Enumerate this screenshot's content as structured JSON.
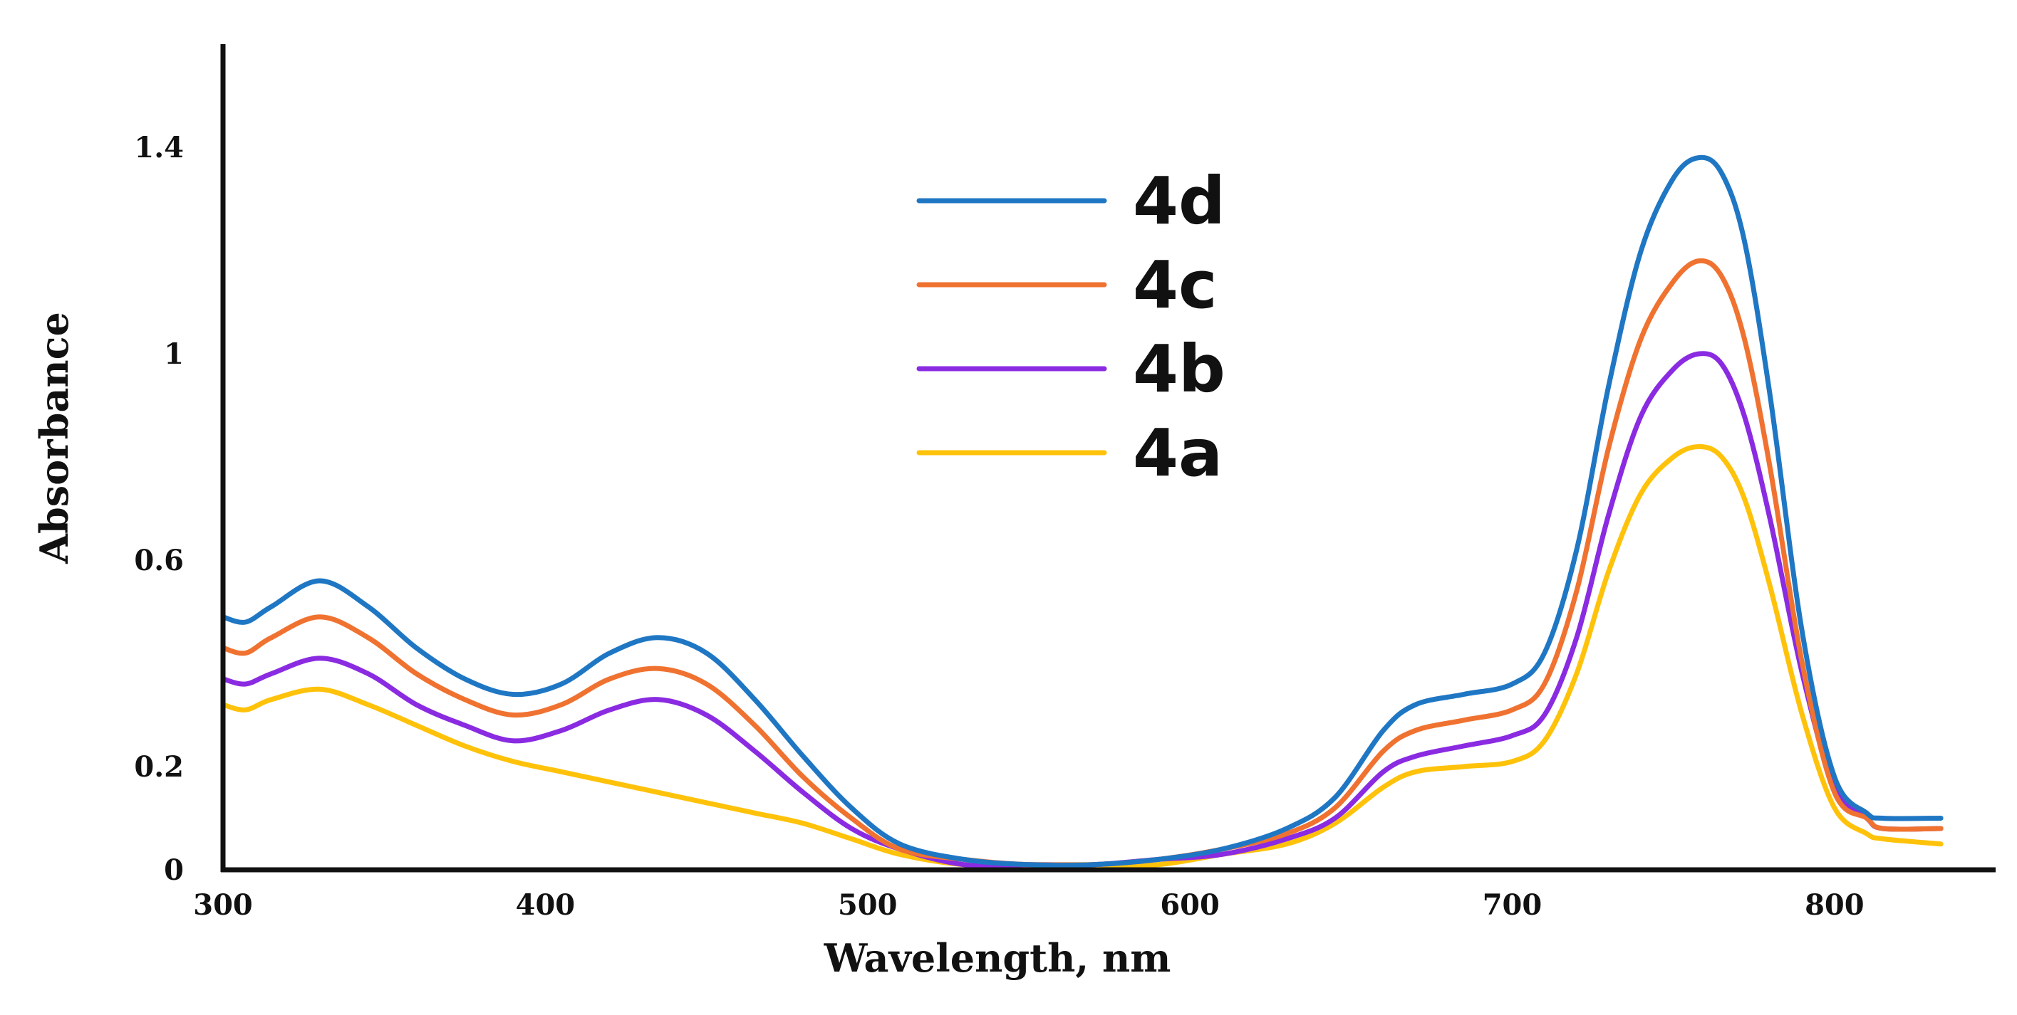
{
  "chart_data": {
    "type": "line",
    "title": "",
    "xlabel": "Wavelength, nm",
    "ylabel": "Absorbance",
    "xlim": [
      300,
      850
    ],
    "ylim": [
      0,
      1.6
    ],
    "xticks": [
      300,
      400,
      500,
      600,
      700,
      800
    ],
    "yticks": [
      {
        "value": 0,
        "label": "0"
      },
      {
        "value": 0.2,
        "label": "0.2"
      },
      {
        "value": 0.6,
        "label": "0.6"
      },
      {
        "value": 1.0,
        "label": "1"
      },
      {
        "value": 1.4,
        "label": "1.4"
      }
    ],
    "grid": false,
    "legend_position": "top-center",
    "series": [
      {
        "name": "4d",
        "color": "#1f77c4",
        "x": [
          300,
          307,
          315,
          330,
          345,
          360,
          375,
          390,
          405,
          420,
          435,
          450,
          465,
          480,
          495,
          510,
          530,
          550,
          570,
          590,
          610,
          630,
          645,
          660,
          670,
          685,
          700,
          710,
          720,
          730,
          740,
          750,
          758,
          765,
          772,
          780,
          790,
          800,
          810,
          815,
          833
        ],
        "y": [
          0.49,
          0.48,
          0.51,
          0.56,
          0.51,
          0.43,
          0.37,
          0.34,
          0.36,
          0.42,
          0.45,
          0.42,
          0.33,
          0.22,
          0.12,
          0.05,
          0.02,
          0.01,
          0.01,
          0.02,
          0.04,
          0.08,
          0.14,
          0.27,
          0.32,
          0.34,
          0.36,
          0.42,
          0.62,
          0.94,
          1.2,
          1.34,
          1.38,
          1.35,
          1.22,
          0.92,
          0.46,
          0.18,
          0.11,
          0.1,
          0.1
        ]
      },
      {
        "name": "4c",
        "color": "#f07230",
        "x": [
          300,
          307,
          315,
          330,
          345,
          360,
          375,
          390,
          405,
          420,
          435,
          450,
          465,
          480,
          495,
          510,
          530,
          550,
          570,
          590,
          610,
          630,
          645,
          660,
          670,
          685,
          700,
          710,
          720,
          730,
          740,
          750,
          758,
          765,
          772,
          780,
          790,
          800,
          810,
          815,
          833
        ],
        "y": [
          0.43,
          0.42,
          0.45,
          0.49,
          0.45,
          0.38,
          0.33,
          0.3,
          0.32,
          0.37,
          0.39,
          0.36,
          0.28,
          0.18,
          0.1,
          0.04,
          0.02,
          0.01,
          0.01,
          0.02,
          0.04,
          0.07,
          0.12,
          0.23,
          0.27,
          0.29,
          0.31,
          0.36,
          0.54,
          0.82,
          1.03,
          1.14,
          1.18,
          1.15,
          1.03,
          0.78,
          0.4,
          0.15,
          0.1,
          0.08,
          0.08
        ]
      },
      {
        "name": "4b",
        "color": "#8a2be2",
        "x": [
          300,
          307,
          315,
          330,
          345,
          360,
          375,
          390,
          405,
          420,
          435,
          450,
          465,
          480,
          495,
          510,
          530,
          550,
          570,
          590,
          610,
          630,
          645,
          660,
          670,
          685,
          700,
          710,
          720,
          730,
          740,
          750,
          758,
          765,
          772,
          780,
          790,
          800,
          810,
          815,
          833
        ],
        "y": [
          0.37,
          0.36,
          0.38,
          0.41,
          0.38,
          0.32,
          0.28,
          0.25,
          0.27,
          0.31,
          0.33,
          0.3,
          0.23,
          0.15,
          0.08,
          0.04,
          0.01,
          0.01,
          0.01,
          0.02,
          0.03,
          0.06,
          0.1,
          0.19,
          0.22,
          0.24,
          0.26,
          0.3,
          0.45,
          0.69,
          0.88,
          0.97,
          1.0,
          0.98,
          0.88,
          0.68,
          0.38,
          0.16,
          0.1,
          0.08,
          0.08
        ]
      },
      {
        "name": "4a",
        "color": "#ffc20a",
        "x": [
          300,
          307,
          315,
          330,
          345,
          360,
          375,
          390,
          405,
          420,
          435,
          450,
          465,
          480,
          495,
          510,
          530,
          550,
          570,
          590,
          610,
          630,
          645,
          660,
          670,
          685,
          700,
          710,
          720,
          730,
          740,
          750,
          758,
          765,
          772,
          780,
          790,
          800,
          810,
          815,
          833
        ],
        "y": [
          0.32,
          0.31,
          0.33,
          0.35,
          0.32,
          0.28,
          0.24,
          0.21,
          0.19,
          0.17,
          0.15,
          0.13,
          0.11,
          0.09,
          0.06,
          0.03,
          0.01,
          0.01,
          0.01,
          0.01,
          0.03,
          0.05,
          0.09,
          0.16,
          0.19,
          0.2,
          0.21,
          0.25,
          0.38,
          0.58,
          0.73,
          0.8,
          0.82,
          0.8,
          0.72,
          0.55,
          0.3,
          0.12,
          0.07,
          0.06,
          0.05
        ]
      }
    ]
  }
}
